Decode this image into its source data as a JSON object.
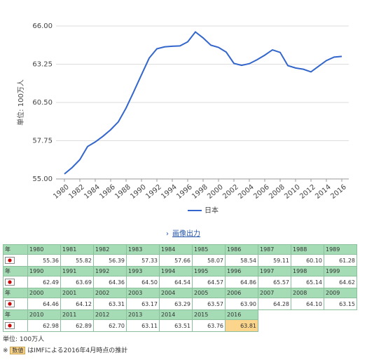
{
  "chart_data": {
    "type": "line",
    "y_label": "単位: 100万人",
    "x": [
      1980,
      1981,
      1982,
      1983,
      1984,
      1985,
      1986,
      1987,
      1988,
      1989,
      1990,
      1991,
      1992,
      1993,
      1994,
      1995,
      1996,
      1997,
      1998,
      1999,
      2000,
      2001,
      2002,
      2003,
      2004,
      2005,
      2006,
      2007,
      2008,
      2009,
      2010,
      2011,
      2012,
      2013,
      2014,
      2015,
      2016
    ],
    "series": [
      {
        "name": "日本",
        "color": "#3366cc",
        "values": [
          55.36,
          55.82,
          56.39,
          57.33,
          57.66,
          58.07,
          58.54,
          59.11,
          60.1,
          61.28,
          62.49,
          63.69,
          64.36,
          64.5,
          64.54,
          64.57,
          64.86,
          65.57,
          65.14,
          64.62,
          64.46,
          64.12,
          63.31,
          63.17,
          63.29,
          63.57,
          63.9,
          64.28,
          64.1,
          63.15,
          62.98,
          62.89,
          62.7,
          63.11,
          63.51,
          63.76,
          63.81
        ],
        "value_labels": [
          "55.36",
          "55.82",
          "56.39",
          "57.33",
          "57.66",
          "58.07",
          "58.54",
          "59.11",
          "60.10",
          "61.28",
          "62.49",
          "63.69",
          "64.36",
          "64.50",
          "64.54",
          "64.57",
          "64.86",
          "65.57",
          "65.14",
          "64.62",
          "64.46",
          "64.12",
          "63.31",
          "63.17",
          "63.29",
          "63.57",
          "63.90",
          "64.28",
          "64.10",
          "63.15",
          "62.98",
          "62.89",
          "62.70",
          "63.11",
          "63.51",
          "63.76",
          "63.81"
        ]
      }
    ],
    "xlim": [
      1980,
      2016
    ],
    "xticks": [
      1980,
      1982,
      1984,
      1986,
      1988,
      1990,
      1992,
      1994,
      1996,
      1998,
      2000,
      2002,
      2004,
      2006,
      2008,
      2010,
      2012,
      2014,
      2016
    ],
    "ylim": [
      55,
      66
    ],
    "yticks": [
      {
        "value": 55,
        "label": "55.00"
      },
      {
        "value": 57.75,
        "label": "57.75"
      },
      {
        "value": 60.5,
        "label": "60.50"
      },
      {
        "value": 63.25,
        "label": "63.25"
      },
      {
        "value": 66,
        "label": "66.00"
      }
    ],
    "grid": true,
    "legend": "bottom",
    "export_link": "画像出力",
    "table_year_header": "年",
    "estimated_x": 2016,
    "estimate_color": "#fad58b",
    "note_mark": "※",
    "note_badge": "数値",
    "note_text": "はIMFによる2016年4月時点の推計"
  }
}
